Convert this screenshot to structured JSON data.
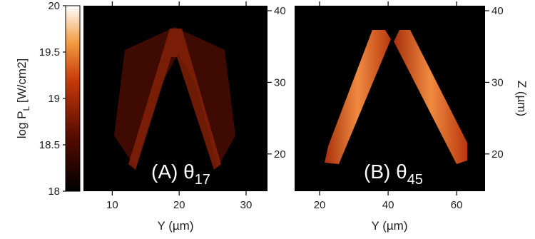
{
  "chart_data": [
    {
      "type": "colorbar",
      "label": {
        "text": "log P",
        "sub": "L",
        "after": " [W/cm2]"
      },
      "ylim": [
        18,
        20
      ],
      "yticks": [
        18,
        18.5,
        19,
        19.5,
        20
      ]
    },
    {
      "type": "heatmap",
      "xlabel": "Y (µm)",
      "annotation": {
        "text": "(A) θ",
        "sub": "17"
      },
      "xlim": [
        5.7,
        33.2
      ],
      "xticks": [
        10,
        20,
        30
      ],
      "y2lim": [
        14.8,
        40.7
      ],
      "y2ticks": [
        20,
        30,
        40
      ]
    },
    {
      "type": "heatmap",
      "xlabel": "Y (µm)",
      "y2label": "Z (µm)",
      "annotation": {
        "text": "(B) θ",
        "sub": "45"
      },
      "xlim": [
        12.7,
        68.3
      ],
      "xticks": [
        20,
        40,
        60
      ],
      "y2lim": [
        14.8,
        40.7
      ],
      "y2ticks": [
        20,
        30,
        40
      ]
    }
  ]
}
